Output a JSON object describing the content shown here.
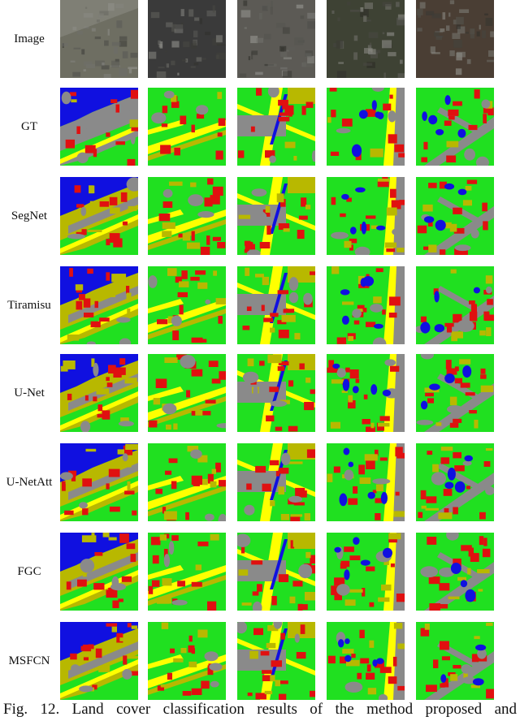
{
  "figure": {
    "row_labels": [
      "Image",
      "GT",
      "SegNet",
      "Tiramisu",
      "U-Net",
      "U-NetAtt",
      "FGC",
      "MSFCN"
    ],
    "caption": "Fig. 12. Land cover classification results of the method proposed and",
    "legend_colors": {
      "water": "#1010e0",
      "vegetation": "#20e020",
      "building": "#e01010",
      "road": "#ffff00",
      "bare_land": "#b8b800",
      "impervious": "#8a8a8a"
    },
    "photo_colors": [
      "#6e6e62",
      "#3a3a3a",
      "#5c5a55",
      "#3e4234",
      "#4a3e34"
    ]
  }
}
